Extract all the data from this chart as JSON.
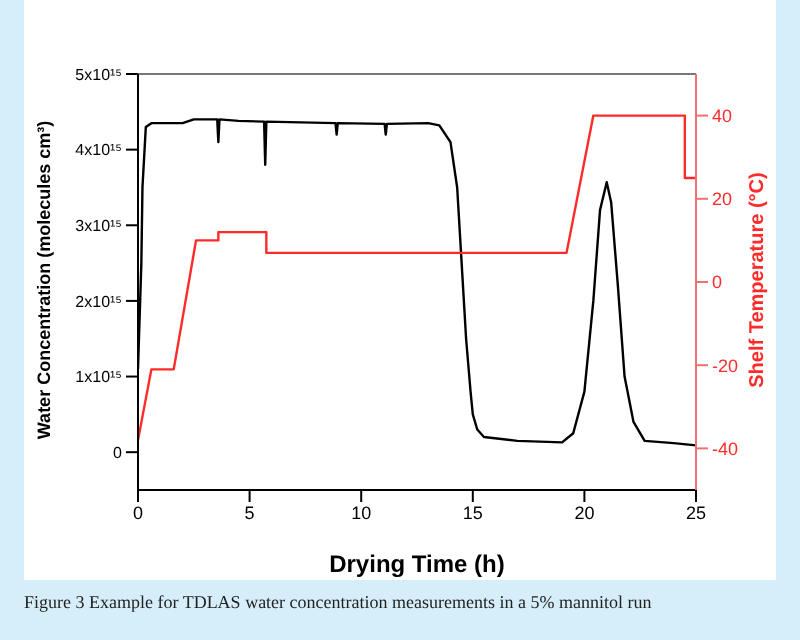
{
  "chart_data": {
    "type": "line",
    "xlabel": "Drying Time (h)",
    "ylabel": "Water Concentration (molecules cm³)",
    "y2label": "Shelf Temperature (°C)",
    "annotations": [
      "Figure 3 Example for TDLAS water concentration measurements in a 5% mannitol run"
    ],
    "xlim": [
      0,
      25
    ],
    "xticks": [
      0,
      5,
      10,
      15,
      20,
      25
    ],
    "ylim": [
      -500000000000000.0,
      5000000000000000.0
    ],
    "yticks": [
      0,
      {
        "value": 1000000000000000.0,
        "label": "1x10¹⁵"
      },
      {
        "value": 2000000000000000.0,
        "label": "2x10¹⁵"
      },
      {
        "value": 3000000000000000.0,
        "label": "3x10¹⁵"
      },
      {
        "value": 4000000000000000.0,
        "label": "4x10¹⁵"
      },
      {
        "value": 5000000000000000.0,
        "label": "5x10¹⁵"
      }
    ],
    "y2lim": [
      -50,
      50
    ],
    "y2ticks": [
      -40,
      -20,
      0,
      20,
      40
    ],
    "series": [
      {
        "color": "#000000",
        "axis": "y",
        "x": [
          0,
          0.15,
          0.2,
          0.35,
          0.6,
          2,
          2.5,
          3.55,
          3.6,
          3.65,
          4.5,
          5.65,
          5.7,
          5.75,
          8.85,
          8.9,
          8.95,
          11.05,
          11.1,
          11.15,
          13,
          13.5,
          14,
          14.3,
          14.5,
          14.7,
          14.9,
          15,
          15.2,
          15.5,
          17,
          19,
          19.5,
          20,
          20.4,
          20.7,
          21,
          21.2,
          21.5,
          21.8,
          22.2,
          22.7,
          24,
          25
        ],
        "values": [
          1100000000000000.0,
          2500000000000000.0,
          3500000000000000.0,
          4300000000000000.0,
          4350000000000000.0,
          4350000000000000.0,
          4400000000000000.0,
          4400000000000000.0,
          4100000000000000.0,
          4400000000000000.0,
          4380000000000000.0,
          4370000000000000.0,
          3800000000000000.0,
          4370000000000000.0,
          4350000000000000.0,
          4200000000000000.0,
          4350000000000000.0,
          4340000000000000.0,
          4200000000000000.0,
          4340000000000000.0,
          4350000000000000.0,
          4320000000000000.0,
          4100000000000000.0,
          3500000000000000.0,
          2500000000000000.0,
          1500000000000000.0,
          800000000000000.0,
          500000000000000.0,
          300000000000000.0,
          200000000000000.0,
          150000000000000.0,
          130000000000000.0,
          250000000000000.0,
          800000000000000.0,
          2000000000000000.0,
          3200000000000000.0,
          3570000000000000.0,
          3300000000000000.0,
          2200000000000000.0,
          1000000000000000.0,
          400000000000000.0,
          150000000000000.0,
          120000000000000.0,
          90000000000000.0
        ]
      },
      {
        "color": "#ff2a2a",
        "axis": "y2",
        "x": [
          0,
          0.6,
          1.6,
          2.6,
          3.6,
          3.6,
          5.75,
          5.75,
          19.2,
          20.4,
          24.5,
          24.5,
          25
        ],
        "values": [
          -38,
          -21,
          -21,
          10,
          10,
          12,
          12,
          7,
          7,
          40,
          40,
          25,
          25
        ]
      }
    ]
  }
}
